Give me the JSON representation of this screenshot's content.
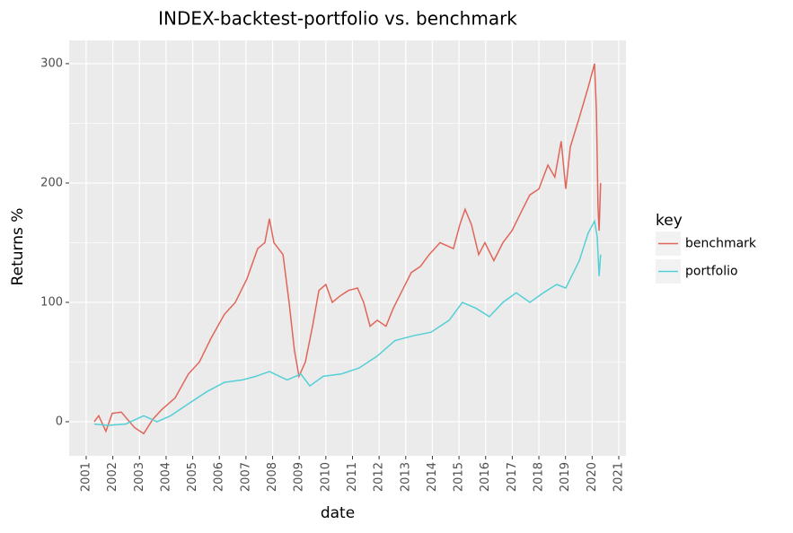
{
  "chart_data": {
    "type": "line",
    "title": "INDEX-backtest-portfolio vs. benchmark",
    "x_label": "date",
    "y_label": "Returns %",
    "legend_title": "key",
    "legend_position": "right",
    "grid": true,
    "xlim": [
      2000.36,
      2021.27
    ],
    "ylim": [
      -28.6,
      319.5
    ],
    "xticks": [
      2001,
      2002,
      2003,
      2004,
      2005,
      2006,
      2007,
      2008,
      2009,
      2010,
      2011,
      2012,
      2013,
      2014,
      2015,
      2016,
      2017,
      2018,
      2019,
      2020,
      2021
    ],
    "yticks": [
      0,
      100,
      200,
      300
    ],
    "series": [
      {
        "name": "benchmark",
        "color": "#e0665a",
        "x": [
          2001.3,
          2001.47,
          2001.74,
          2001.98,
          2002.32,
          2002.55,
          2002.82,
          2003.16,
          2003.5,
          2003.83,
          2004.34,
          2004.84,
          2005.25,
          2005.69,
          2006.19,
          2006.6,
          2007.04,
          2007.44,
          2007.71,
          2007.88,
          2008.05,
          2008.39,
          2008.62,
          2008.82,
          2008.99,
          2009.23,
          2009.5,
          2009.74,
          2010.0,
          2010.24,
          2010.51,
          2010.85,
          2011.19,
          2011.42,
          2011.66,
          2011.93,
          2012.26,
          2012.53,
          2012.87,
          2013.21,
          2013.55,
          2013.88,
          2014.29,
          2014.79,
          2015.03,
          2015.23,
          2015.47,
          2015.74,
          2015.97,
          2016.31,
          2016.65,
          2016.99,
          2017.32,
          2017.66,
          2018.0,
          2018.34,
          2018.6,
          2018.84,
          2019.01,
          2019.18,
          2019.52,
          2019.85,
          2020.09,
          2020.16,
          2020.22,
          2020.26,
          2020.32
        ],
        "values": [
          0,
          5,
          -8,
          7,
          8,
          2,
          -5,
          -10,
          2,
          10,
          20,
          40,
          50,
          70,
          90,
          100,
          120,
          145,
          150,
          170,
          150,
          140,
          100,
          60,
          38,
          50,
          80,
          110,
          115,
          100,
          105,
          110,
          112,
          100,
          80,
          85,
          80,
          95,
          110,
          125,
          130,
          140,
          150,
          145,
          165,
          178,
          165,
          140,
          150,
          135,
          150,
          160,
          175,
          190,
          195,
          215,
          205,
          235,
          195,
          230,
          255,
          280,
          300,
          260,
          180,
          160,
          200
        ]
      },
      {
        "name": "portfolio",
        "color": "#55cfd6",
        "x": [
          2001.3,
          2001.81,
          2002.48,
          2003.16,
          2003.66,
          2004.17,
          2004.84,
          2005.52,
          2006.19,
          2006.87,
          2007.37,
          2007.88,
          2008.55,
          2009.06,
          2009.4,
          2009.9,
          2010.58,
          2011.25,
          2011.93,
          2012.6,
          2013.28,
          2013.95,
          2014.63,
          2015.13,
          2015.64,
          2016.14,
          2016.65,
          2017.15,
          2017.66,
          2018.17,
          2018.67,
          2019.01,
          2019.52,
          2019.85,
          2020.09,
          2020.19,
          2020.26,
          2020.32
        ],
        "values": [
          -2,
          -3,
          -2,
          5,
          0,
          5,
          15,
          25,
          33,
          35,
          38,
          42,
          35,
          40,
          30,
          38,
          40,
          45,
          55,
          68,
          72,
          75,
          85,
          100,
          95,
          88,
          100,
          108,
          100,
          108,
          115,
          112,
          135,
          158,
          168,
          155,
          122,
          140
        ]
      }
    ]
  }
}
